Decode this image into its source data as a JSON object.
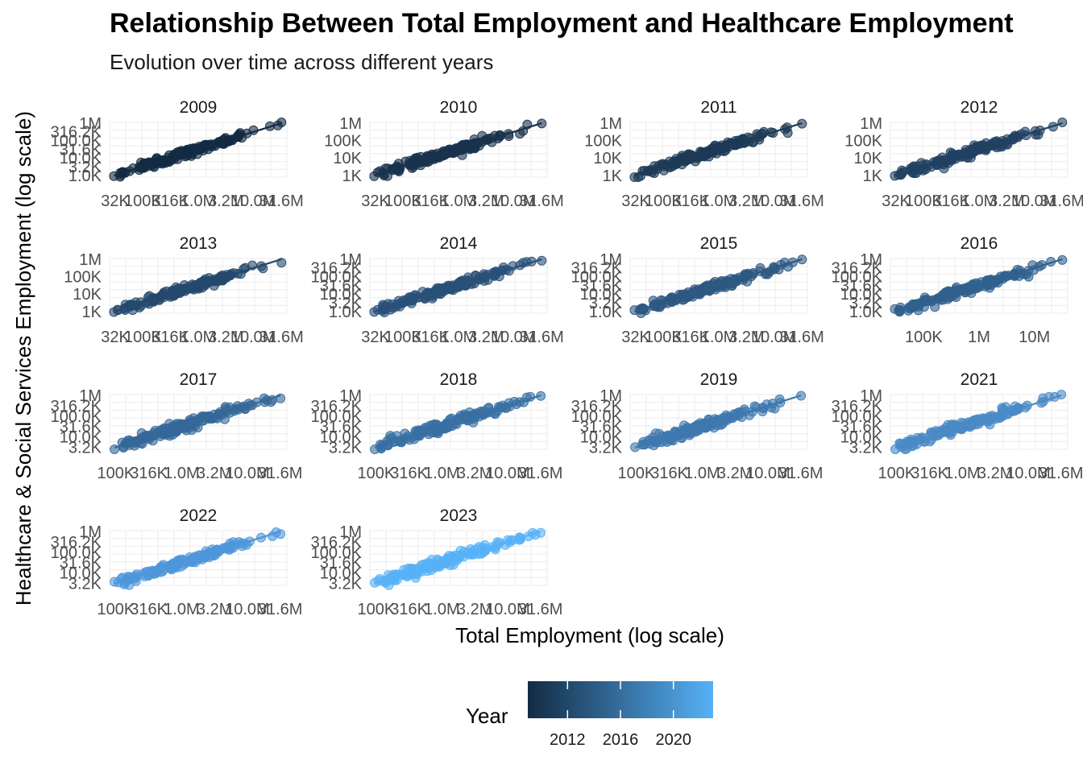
{
  "title": "Relationship Between Total Employment and Healthcare Employment",
  "subtitle": "Evolution over time across different years",
  "chart_data": {
    "type": "scatter",
    "facet_by": "Year",
    "xlabel": "Total Employment (log scale)",
    "ylabel": "Healthcare & Social Services Employment (log scale)",
    "x_scale": "log",
    "y_scale": "log",
    "trend_line": true,
    "grid": true,
    "legend": {
      "title": "Year",
      "position": "bottom",
      "type": "colorbar",
      "ticks": [
        "2012",
        "2016",
        "2020"
      ],
      "color_low": "#132b43",
      "color_high": "#56b1f7"
    },
    "panels": [
      {
        "year": "2009",
        "color": "#132b43",
        "xlim": [
          25000,
          40000000
        ],
        "ylim": [
          800,
          1100000
        ],
        "x_ticks": [
          {
            "v": 31623,
            "t": "32K"
          },
          {
            "v": 100000,
            "t": "100K"
          },
          {
            "v": 316228,
            "t": "316K"
          },
          {
            "v": 1000000,
            "t": "1.0M"
          },
          {
            "v": 3162278,
            "t": "3.2M"
          },
          {
            "v": 10000000,
            "t": "10.0M"
          },
          {
            "v": 31622777,
            "t": "31.6M"
          }
        ],
        "y_ticks": [
          {
            "v": 1000,
            "t": "1.0K"
          },
          {
            "v": 3162,
            "t": "3.2K"
          },
          {
            "v": 10000,
            "t": "10.0K"
          },
          {
            "v": 31623,
            "t": "31.6K"
          },
          {
            "v": 100000,
            "t": "100.0K"
          },
          {
            "v": 316228,
            "t": "316.2K"
          },
          {
            "v": 1000000,
            "t": "1M"
          }
        ],
        "points_range": {
          "x": [
            30000,
            32000000
          ],
          "y": [
            1000,
            1000000
          ]
        }
      },
      {
        "year": "2010",
        "color": "#19324d",
        "xlim": [
          25000,
          40000000
        ],
        "ylim": [
          800,
          1100000
        ],
        "x_ticks": [
          {
            "v": 31623,
            "t": "32K"
          },
          {
            "v": 100000,
            "t": "100K"
          },
          {
            "v": 316228,
            "t": "316K"
          },
          {
            "v": 1000000,
            "t": "1.0M"
          },
          {
            "v": 3162278,
            "t": "3.2M"
          },
          {
            "v": 10000000,
            "t": "10.0M"
          },
          {
            "v": 31622777,
            "t": "31.6M"
          }
        ],
        "y_ticks": [
          {
            "v": 1000,
            "t": "1K"
          },
          {
            "v": 10000,
            "t": "10K"
          },
          {
            "v": 100000,
            "t": "100K"
          },
          {
            "v": 1000000,
            "t": "1M"
          }
        ],
        "points_range": {
          "x": [
            30000,
            32000000
          ],
          "y": [
            1000,
            1000000
          ]
        }
      },
      {
        "year": "2011",
        "color": "#1d3a57",
        "xlim": [
          25000,
          40000000
        ],
        "ylim": [
          800,
          1100000
        ],
        "x_ticks": [
          {
            "v": 31623,
            "t": "32K"
          },
          {
            "v": 100000,
            "t": "100K"
          },
          {
            "v": 316228,
            "t": "316K"
          },
          {
            "v": 1000000,
            "t": "1.0M"
          },
          {
            "v": 3162278,
            "t": "3.2M"
          },
          {
            "v": 10000000,
            "t": "10.0M"
          },
          {
            "v": 31622777,
            "t": "31.6M"
          }
        ],
        "y_ticks": [
          {
            "v": 1000,
            "t": "1K"
          },
          {
            "v": 10000,
            "t": "10K"
          },
          {
            "v": 100000,
            "t": "100K"
          },
          {
            "v": 1000000,
            "t": "1M"
          }
        ],
        "points_range": {
          "x": [
            30000,
            32000000
          ],
          "y": [
            1000,
            1000000
          ]
        }
      },
      {
        "year": "2012",
        "color": "#214162",
        "xlim": [
          25000,
          40000000
        ],
        "ylim": [
          800,
          1100000
        ],
        "x_ticks": [
          {
            "v": 31623,
            "t": "32K"
          },
          {
            "v": 100000,
            "t": "100K"
          },
          {
            "v": 316228,
            "t": "316K"
          },
          {
            "v": 1000000,
            "t": "1.0M"
          },
          {
            "v": 3162278,
            "t": "3.2M"
          },
          {
            "v": 10000000,
            "t": "10.0M"
          },
          {
            "v": 31622777,
            "t": "31.6M"
          }
        ],
        "y_ticks": [
          {
            "v": 1000,
            "t": "1K"
          },
          {
            "v": 10000,
            "t": "10K"
          },
          {
            "v": 100000,
            "t": "100K"
          },
          {
            "v": 1000000,
            "t": "1M"
          }
        ],
        "points_range": {
          "x": [
            30000,
            32000000
          ],
          "y": [
            1000,
            1000000
          ]
        }
      },
      {
        "year": "2013",
        "color": "#25496d",
        "xlim": [
          25000,
          40000000
        ],
        "ylim": [
          800,
          1100000
        ],
        "x_ticks": [
          {
            "v": 31623,
            "t": "32K"
          },
          {
            "v": 100000,
            "t": "100K"
          },
          {
            "v": 316228,
            "t": "316K"
          },
          {
            "v": 1000000,
            "t": "1.0M"
          },
          {
            "v": 3162278,
            "t": "3.2M"
          },
          {
            "v": 10000000,
            "t": "10.0M"
          },
          {
            "v": 31622777,
            "t": "31.6M"
          }
        ],
        "y_ticks": [
          {
            "v": 1000,
            "t": "1K"
          },
          {
            "v": 10000,
            "t": "10K"
          },
          {
            "v": 100000,
            "t": "100K"
          },
          {
            "v": 1000000,
            "t": "1M"
          }
        ],
        "points_range": {
          "x": [
            30000,
            32000000
          ],
          "y": [
            1000,
            1000000
          ]
        }
      },
      {
        "year": "2014",
        "color": "#295078",
        "xlim": [
          25000,
          40000000
        ],
        "ylim": [
          800,
          1100000
        ],
        "x_ticks": [
          {
            "v": 31623,
            "t": "32K"
          },
          {
            "v": 100000,
            "t": "100K"
          },
          {
            "v": 316228,
            "t": "316K"
          },
          {
            "v": 1000000,
            "t": "1.0M"
          },
          {
            "v": 3162278,
            "t": "3.2M"
          },
          {
            "v": 10000000,
            "t": "10.0M"
          },
          {
            "v": 31622777,
            "t": "31.6M"
          }
        ],
        "y_ticks": [
          {
            "v": 1000,
            "t": "1.0K"
          },
          {
            "v": 3162,
            "t": "3.2K"
          },
          {
            "v": 10000,
            "t": "10.0K"
          },
          {
            "v": 31623,
            "t": "31.6K"
          },
          {
            "v": 100000,
            "t": "100.0K"
          },
          {
            "v": 316228,
            "t": "316.2K"
          },
          {
            "v": 1000000,
            "t": "1M"
          }
        ],
        "points_range": {
          "x": [
            30000,
            32000000
          ],
          "y": [
            1000,
            1000000
          ]
        }
      },
      {
        "year": "2015",
        "color": "#2d5882",
        "xlim": [
          25000,
          40000000
        ],
        "ylim": [
          800,
          1100000
        ],
        "x_ticks": [
          {
            "v": 31623,
            "t": "32K"
          },
          {
            "v": 100000,
            "t": "100K"
          },
          {
            "v": 316228,
            "t": "316K"
          },
          {
            "v": 1000000,
            "t": "1.0M"
          },
          {
            "v": 3162278,
            "t": "3.2M"
          },
          {
            "v": 10000000,
            "t": "10.0M"
          },
          {
            "v": 31622777,
            "t": "31.6M"
          }
        ],
        "y_ticks": [
          {
            "v": 1000,
            "t": "1.0K"
          },
          {
            "v": 3162,
            "t": "3.2K"
          },
          {
            "v": 10000,
            "t": "10.0K"
          },
          {
            "v": 31623,
            "t": "31.6K"
          },
          {
            "v": 100000,
            "t": "100.0K"
          },
          {
            "v": 316228,
            "t": "316.2K"
          },
          {
            "v": 1000000,
            "t": "1M"
          }
        ],
        "points_range": {
          "x": [
            30000,
            32000000
          ],
          "y": [
            1000,
            1000000
          ]
        }
      },
      {
        "year": "2016",
        "color": "#31608d",
        "xlim": [
          25000,
          40000000
        ],
        "ylim": [
          800,
          1100000
        ],
        "x_ticks": [
          {
            "v": 100000,
            "t": "100K"
          },
          {
            "v": 1000000,
            "t": "1M"
          },
          {
            "v": 10000000,
            "t": "10M"
          }
        ],
        "y_ticks": [
          {
            "v": 1000,
            "t": "1.0K"
          },
          {
            "v": 3162,
            "t": "3.2K"
          },
          {
            "v": 10000,
            "t": "10.0K"
          },
          {
            "v": 31623,
            "t": "31.6K"
          },
          {
            "v": 100000,
            "t": "100.0K"
          },
          {
            "v": 316228,
            "t": "316.2K"
          },
          {
            "v": 1000000,
            "t": "1M"
          }
        ],
        "points_range": {
          "x": [
            30000,
            32000000
          ],
          "y": [
            1000,
            1000000
          ]
        }
      },
      {
        "year": "2017",
        "color": "#356898",
        "xlim": [
          80000,
          40000000
        ],
        "ylim": [
          2500,
          1100000
        ],
        "x_ticks": [
          {
            "v": 100000,
            "t": "100K"
          },
          {
            "v": 316228,
            "t": "316K"
          },
          {
            "v": 1000000,
            "t": "1.0M"
          },
          {
            "v": 3162278,
            "t": "3.2M"
          },
          {
            "v": 10000000,
            "t": "10.0M"
          },
          {
            "v": 31622777,
            "t": "31.6M"
          }
        ],
        "y_ticks": [
          {
            "v": 3162,
            "t": "3.2K"
          },
          {
            "v": 10000,
            "t": "10.0K"
          },
          {
            "v": 31623,
            "t": "31.6K"
          },
          {
            "v": 100000,
            "t": "100.0K"
          },
          {
            "v": 316228,
            "t": "316.2K"
          },
          {
            "v": 1000000,
            "t": "1M"
          }
        ],
        "points_range": {
          "x": [
            95000,
            32000000
          ],
          "y": [
            3000,
            1000000
          ]
        }
      },
      {
        "year": "2018",
        "color": "#3970a3",
        "xlim": [
          80000,
          40000000
        ],
        "ylim": [
          2500,
          1100000
        ],
        "x_ticks": [
          {
            "v": 100000,
            "t": "100K"
          },
          {
            "v": 316228,
            "t": "316K"
          },
          {
            "v": 1000000,
            "t": "1.0M"
          },
          {
            "v": 3162278,
            "t": "3.2M"
          },
          {
            "v": 10000000,
            "t": "10.0M"
          },
          {
            "v": 31622777,
            "t": "31.6M"
          }
        ],
        "y_ticks": [
          {
            "v": 3162,
            "t": "3.2K"
          },
          {
            "v": 10000,
            "t": "10.0K"
          },
          {
            "v": 31623,
            "t": "31.6K"
          },
          {
            "v": 100000,
            "t": "100.0K"
          },
          {
            "v": 316228,
            "t": "316.2K"
          },
          {
            "v": 1000000,
            "t": "1M"
          }
        ],
        "points_range": {
          "x": [
            95000,
            32000000
          ],
          "y": [
            3000,
            1000000
          ]
        }
      },
      {
        "year": "2019",
        "color": "#3e78ae",
        "xlim": [
          80000,
          40000000
        ],
        "ylim": [
          2500,
          1100000
        ],
        "x_ticks": [
          {
            "v": 100000,
            "t": "100K"
          },
          {
            "v": 316228,
            "t": "316K"
          },
          {
            "v": 1000000,
            "t": "1.0M"
          },
          {
            "v": 3162278,
            "t": "3.2M"
          },
          {
            "v": 10000000,
            "t": "10.0M"
          },
          {
            "v": 31622777,
            "t": "31.6M"
          }
        ],
        "y_ticks": [
          {
            "v": 3162,
            "t": "3.2K"
          },
          {
            "v": 10000,
            "t": "10.0K"
          },
          {
            "v": 31623,
            "t": "31.6K"
          },
          {
            "v": 100000,
            "t": "100.0K"
          },
          {
            "v": 316228,
            "t": "316.2K"
          },
          {
            "v": 1000000,
            "t": "1M"
          }
        ],
        "points_range": {
          "x": [
            95000,
            32000000
          ],
          "y": [
            3000,
            1000000
          ]
        }
      },
      {
        "year": "2021",
        "color": "#4a8ac6",
        "xlim": [
          80000,
          40000000
        ],
        "ylim": [
          2500,
          1100000
        ],
        "x_ticks": [
          {
            "v": 100000,
            "t": "100K"
          },
          {
            "v": 316228,
            "t": "316K"
          },
          {
            "v": 1000000,
            "t": "1.0M"
          },
          {
            "v": 3162278,
            "t": "3.2M"
          },
          {
            "v": 10000000,
            "t": "10.0M"
          },
          {
            "v": 31622777,
            "t": "31.6M"
          }
        ],
        "y_ticks": [
          {
            "v": 3162,
            "t": "3.2K"
          },
          {
            "v": 10000,
            "t": "10.0K"
          },
          {
            "v": 31623,
            "t": "31.6K"
          },
          {
            "v": 100000,
            "t": "100.0K"
          },
          {
            "v": 316228,
            "t": "316.2K"
          },
          {
            "v": 1000000,
            "t": "1M"
          }
        ],
        "points_range": {
          "x": [
            95000,
            32000000
          ],
          "y": [
            3000,
            1000000
          ]
        }
      },
      {
        "year": "2022",
        "color": "#4f96da",
        "xlim": [
          80000,
          40000000
        ],
        "ylim": [
          2500,
          1100000
        ],
        "x_ticks": [
          {
            "v": 100000,
            "t": "100K"
          },
          {
            "v": 316228,
            "t": "316K"
          },
          {
            "v": 1000000,
            "t": "1.0M"
          },
          {
            "v": 3162278,
            "t": "3.2M"
          },
          {
            "v": 10000000,
            "t": "10.0M"
          },
          {
            "v": 31622777,
            "t": "31.6M"
          }
        ],
        "y_ticks": [
          {
            "v": 3162,
            "t": "3.2K"
          },
          {
            "v": 10000,
            "t": "10.0K"
          },
          {
            "v": 31623,
            "t": "31.6K"
          },
          {
            "v": 100000,
            "t": "100.0K"
          },
          {
            "v": 316228,
            "t": "316.2K"
          },
          {
            "v": 1000000,
            "t": "1M"
          }
        ],
        "points_range": {
          "x": [
            95000,
            32000000
          ],
          "y": [
            3000,
            1000000
          ]
        }
      },
      {
        "year": "2023",
        "color": "#56b1f7",
        "xlim": [
          80000,
          40000000
        ],
        "ylim": [
          2500,
          1100000
        ],
        "x_ticks": [
          {
            "v": 100000,
            "t": "100K"
          },
          {
            "v": 316228,
            "t": "316K"
          },
          {
            "v": 1000000,
            "t": "1.0M"
          },
          {
            "v": 3162278,
            "t": "3.2M"
          },
          {
            "v": 10000000,
            "t": "10.0M"
          },
          {
            "v": 31622777,
            "t": "31.6M"
          }
        ],
        "y_ticks": [
          {
            "v": 3162,
            "t": "3.2K"
          },
          {
            "v": 10000,
            "t": "10.0K"
          },
          {
            "v": 31623,
            "t": "31.6K"
          },
          {
            "v": 100000,
            "t": "100.0K"
          },
          {
            "v": 316228,
            "t": "316.2K"
          },
          {
            "v": 1000000,
            "t": "1M"
          }
        ],
        "points_range": {
          "x": [
            95000,
            32000000
          ],
          "y": [
            3000,
            1000000
          ]
        }
      }
    ]
  }
}
